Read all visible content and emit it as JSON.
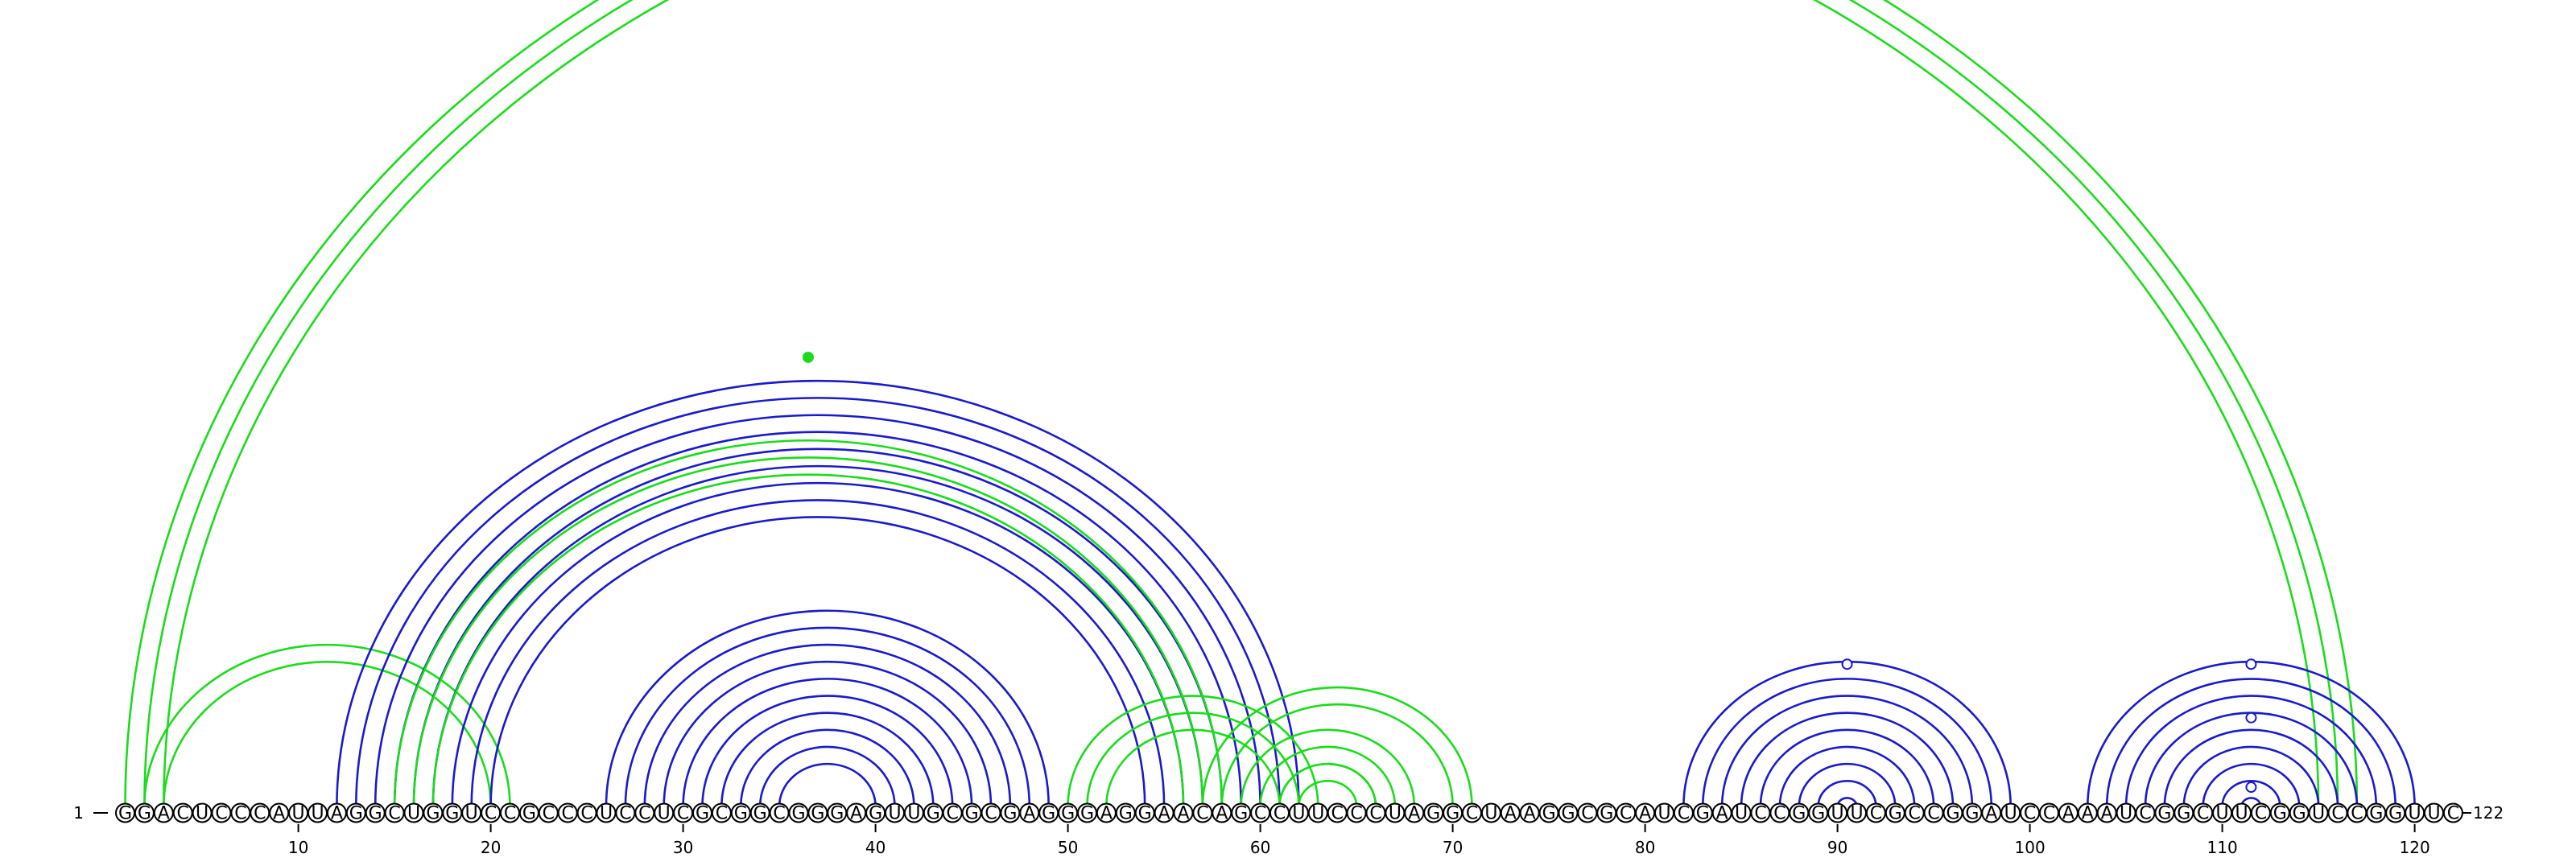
{
  "diagram": {
    "sequence": "GGACUCCCAUUAGGCUGGUCCGCCCUCCUCGCGGCGGGAGUUGCGCGAGGGAGGAACAGCCUUCCCUAGGCUAAGGCGCAUCGAUCCGGUUCGCCGGAUCCAAAUCGGCUUCGGUCCGGUUC",
    "start_label": "1",
    "end_label": "122",
    "ticks": [
      10,
      20,
      30,
      40,
      50,
      60,
      70,
      80,
      90,
      100,
      110,
      120
    ],
    "colors": {
      "green": "#1adc1a",
      "blue": "#1a1acc"
    },
    "helices": [
      {
        "color": "green",
        "i": 1,
        "j": 117,
        "n": 3
      },
      {
        "color": "green",
        "i": 2,
        "j": 21,
        "n": 2
      },
      {
        "color": "blue",
        "i": 12,
        "j": 62,
        "n": 9
      },
      {
        "color": "green",
        "i": 15,
        "j": 58,
        "n": 3
      },
      {
        "color": "blue",
        "i": 26,
        "j": 49,
        "n": 10
      },
      {
        "color": "green",
        "i": 50,
        "j": 63,
        "n": 3
      },
      {
        "color": "green",
        "i": 57,
        "j": 71,
        "n": 2
      },
      {
        "color": "green",
        "i": 59,
        "j": 68,
        "n": 3
      },
      {
        "color": "green",
        "i": 61,
        "j": 66,
        "n": 2
      },
      {
        "color": "blue",
        "i": 82,
        "j": 99,
        "n": 9
      },
      {
        "color": "blue",
        "i": 103,
        "j": 120,
        "n": 9
      }
    ],
    "markers": [
      {
        "color": "green",
        "pos": 36.5,
        "level": 0.55
      },
      {
        "color": "blue",
        "pos": 90.5,
        "level": 0.05
      },
      {
        "color": "blue",
        "pos": 111.5,
        "level": 0.42
      },
      {
        "color": "blue",
        "pos": 111.5,
        "level": 0.9
      },
      {
        "color": "blue",
        "pos": 111.5,
        "level": 0.05
      }
    ]
  }
}
